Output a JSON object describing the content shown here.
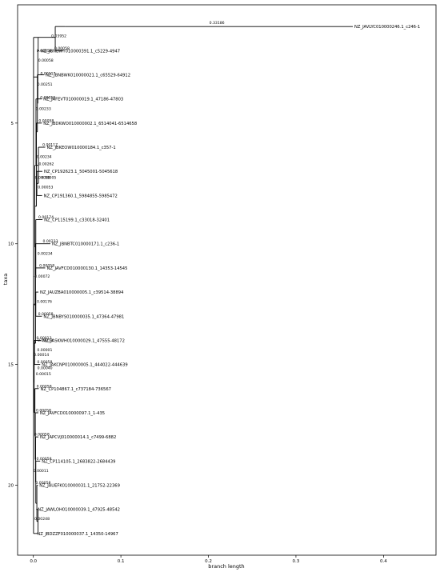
{
  "chart_data": {
    "type": "phylogenetic-tree",
    "xlabel": "branch length",
    "ylabel": "taxa",
    "xlim": [
      -0.018,
      0.46
    ],
    "ylim": [
      22.9,
      0.1
    ],
    "xticks": [
      0.0,
      0.1,
      0.2,
      0.3,
      0.4
    ],
    "xtick_labels": [
      "0.0",
      "0.1",
      "0.2",
      "0.3",
      "0.4"
    ],
    "yticks": [
      5,
      10,
      15,
      20
    ],
    "ytick_labels": [
      "5",
      "10",
      "15",
      "20"
    ],
    "line_color": "#000000",
    "leaves": [
      {
        "label": "NZ_JAVLYC010000246.1_c246-1",
        "y": 1,
        "x": 0.365
      },
      {
        "label": "NZ_JBNBWY010000391.1_c5229-4947",
        "y": 2,
        "x": 0.0067
      },
      {
        "label": "NZ_JBNBWK010000021.1_c65529-64912",
        "y": 3,
        "x": 0.0123
      },
      {
        "label": "NZ_JAFEVT010000019.1_47186-47803",
        "y": 4,
        "x": 0.0095
      },
      {
        "label": "NZ_JBDKWO010000002.1_6514041-6514658",
        "y": 5,
        "x": 0.0097
      },
      {
        "label": "NZ_JBKEOW010000184.1_c357-1",
        "y": 6,
        "x": 0.0135
      },
      {
        "label": "NZ_CP192623.1_5045001-5045618",
        "y": 7,
        "x": 0.0103
      },
      {
        "label": "NZ_CP191360.1_5984855-5985472",
        "y": 8,
        "x": 0.01
      },
      {
        "label": "NZ_CP115199.1_c33018-32401",
        "y": 9,
        "x": 0.0105
      },
      {
        "label": "NZ_JBNBTC010000171.1_c236-1",
        "y": 10,
        "x": 0.0195
      },
      {
        "label": "NZ_JAVFCD010000130.1_14353-14545",
        "y": 11,
        "x": 0.0135
      },
      {
        "label": "NZ_JAUZBA010000005.1_c39514-38894",
        "y": 12,
        "x": 0.0058
      },
      {
        "label": "NZ_JBNBYS010000035.1_47364-47981",
        "y": 13,
        "x": 0.0098
      },
      {
        "label": "NZ_JASKWH010000029.1_47555-48172",
        "y": 14,
        "x": 0.0087
      },
      {
        "label": "NZ_JAKCNP010000005.1_444022-444639",
        "y": 15,
        "x": 0.0078
      },
      {
        "label": "NZ_CP104867.1_c737184-736567",
        "y": 16,
        "x": 0.0062
      },
      {
        "label": "NZ_JAVFCD010000097.1_1-435",
        "y": 17,
        "x": 0.0057
      },
      {
        "label": "NZ_JAPCVJ010000014.1_c7499-6882",
        "y": 18,
        "x": 0.0058
      },
      {
        "label": "NZ_CP114105.1_2683822-2684439",
        "y": 19,
        "x": 0.0078
      },
      {
        "label": "NZ_JAUEFK010000031.1_21752-22369",
        "y": 20,
        "x": 0.0051
      },
      {
        "label": "NZ_JAWLOH010000039.1_47925-48542",
        "y": 21,
        "x": 0.0033
      },
      {
        "label": "NZ_JBDZZF010000037.1_14350-14967",
        "y": 22,
        "x": 0.0025
      }
    ],
    "branch_labels": [
      {
        "text": "0.33186",
        "x": 0.201,
        "y": 0.9
      },
      {
        "text": "0.03952",
        "x": 0.0205,
        "y": 1.45
      },
      {
        "text": "0.00058",
        "x": 0.0055,
        "y": 2.45
      },
      {
        "text": "0.00058",
        "x": 0.024,
        "y": 1.95
      },
      {
        "text": "0.00058",
        "x": 0.0037,
        "y": 2.05
      },
      {
        "text": "0.00117",
        "x": 0.008,
        "y": 3.0
      },
      {
        "text": "0.00251",
        "x": 0.0045,
        "y": 3.45
      },
      {
        "text": "0.00058",
        "x": 0.0078,
        "y": 4.0
      },
      {
        "text": "0.00233",
        "x": 0.0028,
        "y": 4.45
      },
      {
        "text": "0.00058",
        "x": 0.0061,
        "y": 4.95
      },
      {
        "text": "0.00117",
        "x": 0.0104,
        "y": 5.95
      },
      {
        "text": "0.00234",
        "x": 0.0037,
        "y": 6.45
      },
      {
        "text": "0.00262",
        "x": 0.0062,
        "y": 6.75
      },
      {
        "text": "0.00058",
        "x": 0.0018,
        "y": 7.3
      },
      {
        "text": "0.00005",
        "x": 0.0088,
        "y": 7.3
      },
      {
        "text": "0.00053",
        "x": 0.0052,
        "y": 7.7
      },
      {
        "text": "0.00174",
        "x": 0.0058,
        "y": 8.95
      },
      {
        "text": "0.00233",
        "x": 0.0108,
        "y": 9.95
      },
      {
        "text": "0.00234",
        "x": 0.0046,
        "y": 10.45
      },
      {
        "text": "0.00058",
        "x": 0.0068,
        "y": 10.95
      },
      {
        "text": "-0.00072",
        "x": 0.0,
        "y": 11.4
      },
      {
        "text": "0.00176",
        "x": 0.0039,
        "y": 12.45
      },
      {
        "text": "0.00058",
        "x": 0.0054,
        "y": 12.95
      },
      {
        "text": "0.00013",
        "x": 0.0035,
        "y": 13.95
      },
      {
        "text": "0.00058",
        "x": 0.0049,
        "y": 14.05
      },
      {
        "text": "0.00001",
        "x": 0.0043,
        "y": 14.45
      },
      {
        "text": "0.00014",
        "x": 0.0005,
        "y": 14.65
      },
      {
        "text": "0.00058",
        "x": 0.0043,
        "y": 14.95
      },
      {
        "text": "0.00040",
        "x": 0.0045,
        "y": 15.2
      },
      {
        "text": "0.00015",
        "x": 0.0028,
        "y": 15.45
      },
      {
        "text": "0.00058",
        "x": 0.0036,
        "y": 15.95
      },
      {
        "text": "0.00058",
        "x": 0.003,
        "y": 16.95
      },
      {
        "text": "0.00058",
        "x": 0.001,
        "y": 17.95
      },
      {
        "text": "0.00058",
        "x": 0.0035,
        "y": 18.95
      },
      {
        "text": "0.00011",
        "x": 0.0,
        "y": 19.45
      },
      {
        "text": "0.00058",
        "x": 0.0025,
        "y": 19.95
      },
      {
        "text": "0.00248",
        "x": 0.0012,
        "y": 21.45
      }
    ]
  }
}
